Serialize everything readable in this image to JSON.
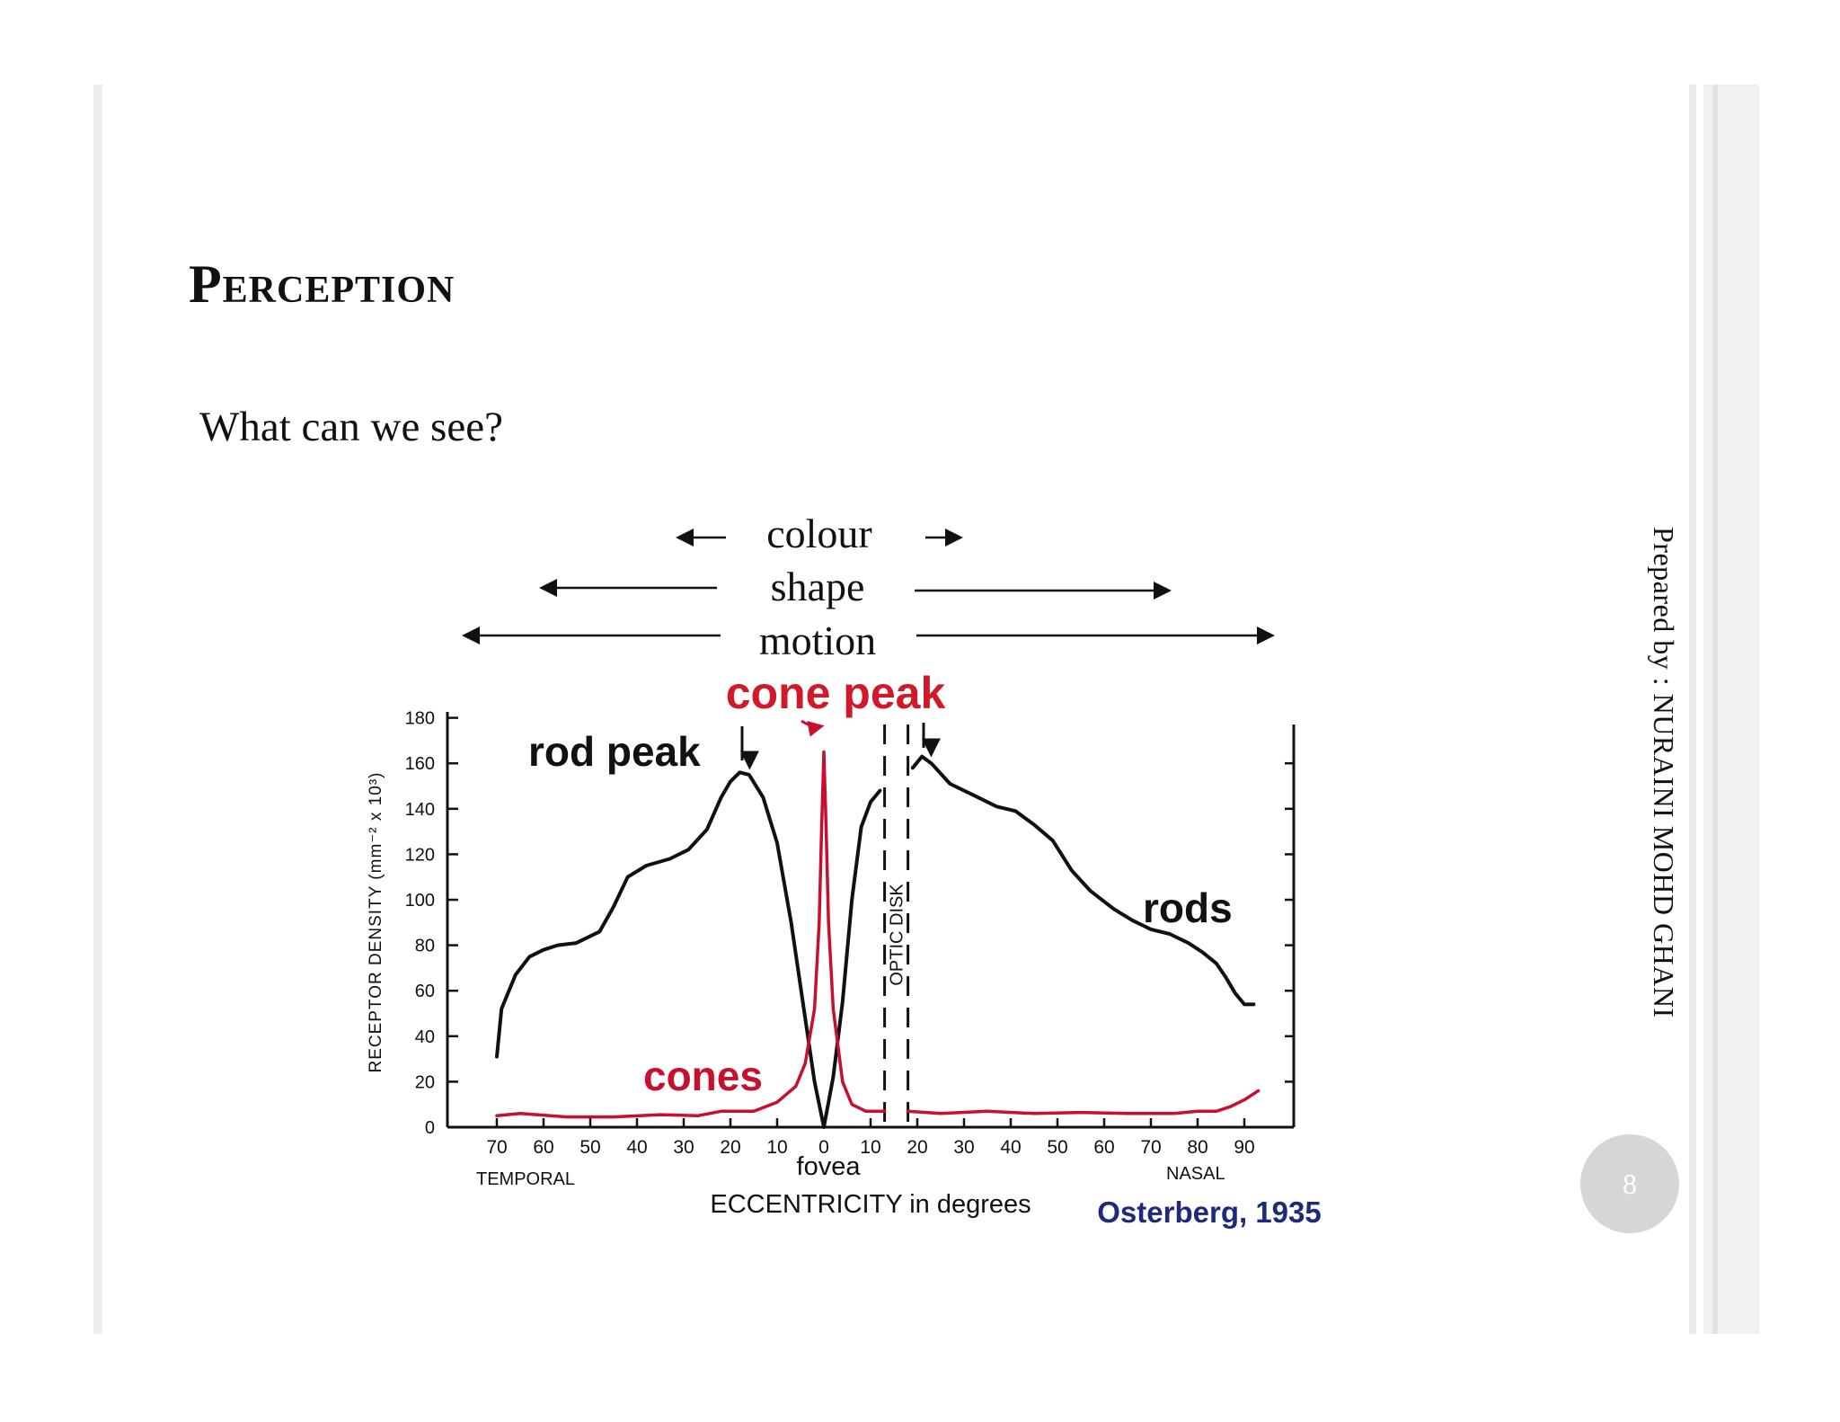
{
  "slide": {
    "title": "Perception",
    "subtitle": "What can we see?",
    "author": "Prepared by : NURAINI MOHD GHANI",
    "page_number": "8"
  },
  "vision_ranges": [
    {
      "label": "colour"
    },
    {
      "label": "shape"
    },
    {
      "label": "motion"
    }
  ],
  "chart_data": {
    "type": "line",
    "ylabel": "RECEPTOR DENSITY (mm⁻² x 10³)",
    "xlabel": "ECCENTRICITY in degrees",
    "x_left_label": "TEMPORAL",
    "x_right_label": "NASAL",
    "x_center_label": "fovea",
    "ylim": [
      0,
      180
    ],
    "xlim": [
      -72,
      95
    ],
    "y_ticks": [
      0,
      20,
      40,
      60,
      80,
      100,
      120,
      140,
      160,
      180
    ],
    "x_ticks": [
      {
        "value": -70,
        "label": "70"
      },
      {
        "value": -60,
        "label": "60"
      },
      {
        "value": -50,
        "label": "50"
      },
      {
        "value": -40,
        "label": "40"
      },
      {
        "value": -30,
        "label": "30"
      },
      {
        "value": -20,
        "label": "20"
      },
      {
        "value": -10,
        "label": "10"
      },
      {
        "value": 0,
        "label": "0"
      },
      {
        "value": 10,
        "label": "10"
      },
      {
        "value": 20,
        "label": "20"
      },
      {
        "value": 30,
        "label": "30"
      },
      {
        "value": 40,
        "label": "40"
      },
      {
        "value": 50,
        "label": "50"
      },
      {
        "value": 60,
        "label": "60"
      },
      {
        "value": 70,
        "label": "70"
      },
      {
        "value": 80,
        "label": "80"
      },
      {
        "value": 90,
        "label": "90"
      }
    ],
    "optic_disk_label": "OPTIC DISK",
    "optic_disk_range": [
      13,
      18
    ],
    "source": "Osterberg, 1935",
    "annotations": {
      "rod_peak": "rod peak",
      "cone_peak": "cone peak",
      "rods": "rods",
      "cones": "cones"
    },
    "colors": {
      "rods": "#111111",
      "cones": "#c8102e",
      "source": "#1f2a7a",
      "cone_peak_label": "#d0192b"
    },
    "series": [
      {
        "name": "rods",
        "segments": [
          [
            [
              -70,
              31
            ],
            [
              -69,
              52
            ],
            [
              -66,
              67
            ],
            [
              -63,
              75
            ],
            [
              -60,
              78
            ],
            [
              -57,
              80
            ],
            [
              -53,
              81
            ],
            [
              -48,
              86
            ],
            [
              -45,
              97
            ],
            [
              -42,
              110
            ],
            [
              -38,
              115
            ],
            [
              -33,
              118
            ],
            [
              -29,
              122
            ],
            [
              -25,
              131
            ],
            [
              -22,
              145
            ],
            [
              -20,
              152
            ],
            [
              -18,
              156
            ],
            [
              -16,
              155
            ],
            [
              -13,
              145
            ],
            [
              -10,
              125
            ],
            [
              -7,
              90
            ],
            [
              -4,
              48
            ],
            [
              -2,
              20
            ],
            [
              0,
              0
            ],
            [
              2,
              22
            ],
            [
              4,
              55
            ],
            [
              6,
              100
            ],
            [
              8,
              132
            ],
            [
              10,
              143
            ],
            [
              12,
              148
            ]
          ],
          [
            [
              19,
              158
            ],
            [
              21,
              163
            ],
            [
              23,
              160
            ],
            [
              27,
              151
            ],
            [
              32,
              146
            ],
            [
              37,
              141
            ],
            [
              41,
              139
            ],
            [
              45,
              133
            ],
            [
              49,
              126
            ],
            [
              53,
              113
            ],
            [
              57,
              104
            ],
            [
              62,
              96
            ],
            [
              66,
              91
            ],
            [
              70,
              87
            ],
            [
              74,
              85
            ],
            [
              78,
              81
            ],
            [
              81,
              77
            ],
            [
              84,
              72
            ],
            [
              86,
              66
            ],
            [
              88,
              59
            ],
            [
              90,
              54
            ],
            [
              92,
              54
            ]
          ]
        ]
      },
      {
        "name": "cones",
        "segments": [
          [
            [
              -70,
              5
            ],
            [
              -65,
              6
            ],
            [
              -55,
              4.5
            ],
            [
              -45,
              4.5
            ],
            [
              -35,
              5.5
            ],
            [
              -27,
              5
            ],
            [
              -22,
              7
            ],
            [
              -15,
              7
            ],
            [
              -10,
              11
            ],
            [
              -6,
              18
            ],
            [
              -4,
              28
            ],
            [
              -2,
              52
            ],
            [
              -1,
              90
            ],
            [
              -0.5,
              130
            ],
            [
              0,
              165
            ],
            [
              0.5,
              130
            ],
            [
              1,
              90
            ],
            [
              2,
              52
            ],
            [
              4,
              20
            ],
            [
              6,
              10
            ],
            [
              9,
              7
            ],
            [
              13,
              7
            ]
          ],
          [
            [
              18,
              7
            ],
            [
              25,
              6
            ],
            [
              35,
              7
            ],
            [
              45,
              6
            ],
            [
              55,
              6.5
            ],
            [
              65,
              6
            ],
            [
              75,
              6
            ],
            [
              80,
              7
            ],
            [
              84,
              7
            ],
            [
              87,
              9
            ],
            [
              90,
              12
            ],
            [
              93,
              16
            ]
          ]
        ]
      }
    ]
  }
}
